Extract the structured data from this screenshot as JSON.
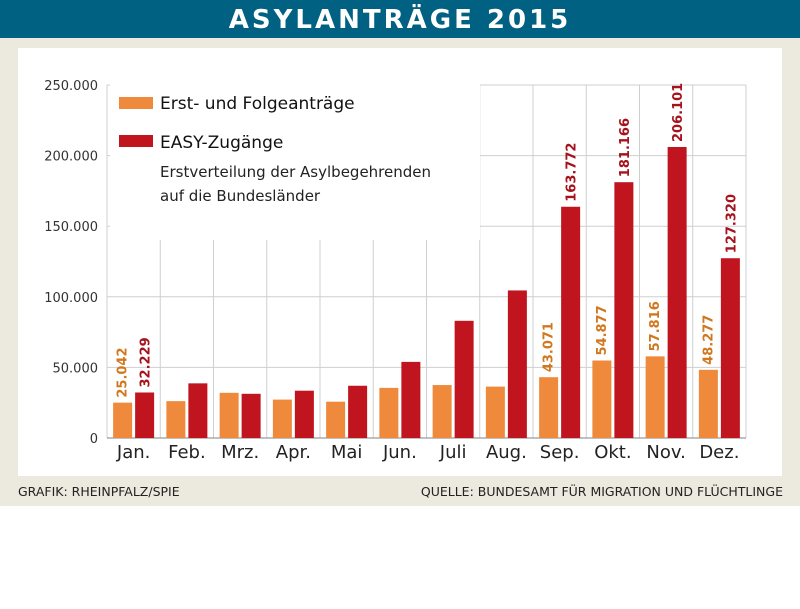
{
  "header": {
    "title": "ASYLANTRÄGE 2015"
  },
  "footer": {
    "credit": "GRAFIK: RHEINPFALZ/SPIE",
    "source": "QUELLE: BUNDESAMT FÜR MIGRATION UND FLÜCHTLINGE"
  },
  "colors": {
    "banner": "#006182",
    "panel": "#ece9df",
    "erst": "#ef8a3c",
    "easy": "#c0141f"
  },
  "chart_data": {
    "type": "bar",
    "title": "ASYLANTRÄGE 2015",
    "categories": [
      "Jan.",
      "Feb.",
      "Mrz.",
      "Apr.",
      "Mai",
      "Jun.",
      "Juli",
      "Aug.",
      "Sep.",
      "Okt.",
      "Nov.",
      "Dez."
    ],
    "series": [
      {
        "name": "Erst- und Folgeanträge",
        "color": "#ef8a3c",
        "values": [
          25042,
          26100,
          32000,
          27200,
          25700,
          35500,
          37500,
          36400,
          43071,
          54877,
          57816,
          48277
        ],
        "labels": [
          "25.042",
          "",
          "",
          "",
          "",
          "",
          "",
          "",
          "43.071",
          "54.877",
          "57.816",
          "48.277"
        ]
      },
      {
        "name": "EASY-Zugänge",
        "subtitle_lines": [
          "Erstverteilung der Asylbegehrenden",
          "auf die Bundesländer"
        ],
        "color": "#c0141f",
        "values": [
          32229,
          38700,
          31300,
          33500,
          37000,
          53900,
          83000,
          104500,
          163772,
          181166,
          206101,
          127320
        ],
        "labels": [
          "32.229",
          "",
          "",
          "",
          "",
          "",
          "",
          "",
          "163.772",
          "181.166",
          "206.101",
          "127.320"
        ]
      }
    ],
    "ylim": [
      0,
      250000
    ],
    "yticks": [
      0,
      50000,
      100000,
      150000,
      200000,
      250000
    ],
    "ytick_labels": [
      "0",
      "50.000",
      "100.000",
      "150.000",
      "200.000",
      "250.000"
    ],
    "xlabel": "",
    "ylabel": "",
    "grid": true,
    "legend": "top-left"
  }
}
